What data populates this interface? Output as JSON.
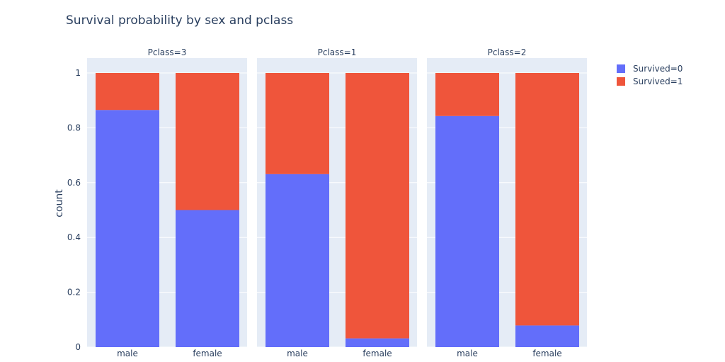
{
  "chart_data": {
    "type": "bar",
    "title": "Survival probability by sex and pclass",
    "ylabel": "count",
    "ylim": [
      0,
      1
    ],
    "yticks": [
      "0",
      "0.2",
      "0.4",
      "0.6",
      "0.8",
      "1"
    ],
    "categories": [
      "male",
      "female"
    ],
    "barmode": "stack",
    "grid": true,
    "legend_position": "top-right",
    "legend": [
      {
        "name": "Survived=0",
        "color": "#636efa"
      },
      {
        "name": "Survived=1",
        "color": "#ef553b"
      }
    ],
    "facets": [
      {
        "title": "Pclass=3",
        "series": [
          {
            "name": "Survived=0",
            "values": [
              0.865,
              0.5
            ]
          },
          {
            "name": "Survived=1",
            "values": [
              0.135,
              0.5
            ]
          }
        ]
      },
      {
        "title": "Pclass=1",
        "series": [
          {
            "name": "Survived=0",
            "values": [
              0.631,
              0.032
            ]
          },
          {
            "name": "Survived=1",
            "values": [
              0.369,
              0.968
            ]
          }
        ]
      },
      {
        "title": "Pclass=2",
        "series": [
          {
            "name": "Survived=0",
            "values": [
              0.843,
              0.079
            ]
          },
          {
            "name": "Survived=1",
            "values": [
              0.157,
              0.921
            ]
          }
        ]
      }
    ]
  }
}
